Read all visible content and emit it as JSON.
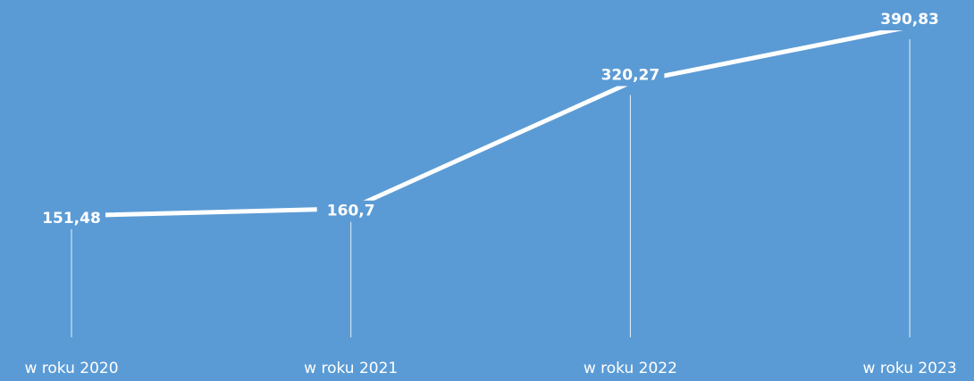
{
  "chart_data": {
    "type": "line",
    "categories": [
      "w roku 2020",
      "w roku 2021",
      "w roku 2022",
      "w roku 2023"
    ],
    "series": [
      {
        "color": "#ffffff",
        "values": [
          151.48,
          160.7,
          320.27,
          390.83
        ],
        "value_labels": [
          "151,48",
          "160,7",
          "320,27",
          "390,83"
        ]
      }
    ],
    "background": "#5b9bd5",
    "drop_lines": true
  }
}
